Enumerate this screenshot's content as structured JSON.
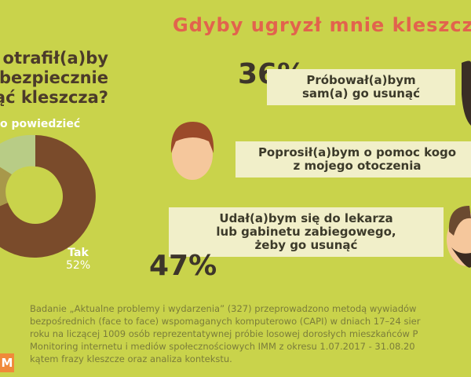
{
  "question": {
    "lines": [
      "otrafił(a)by",
      "bezpiecznie",
      "ąć kleszcza?"
    ]
  },
  "donut": {
    "other_label": "o powiedzieć",
    "yes_label": "Tak",
    "yes_value": "52%"
  },
  "title": "Gdyby ugryzł mnie kleszcz",
  "answers": [
    {
      "percent": "36%",
      "lines": [
        "Próbował(a)bym",
        "sam(a) go usunąć"
      ]
    },
    {
      "lines": [
        "Poprosił(a)bym o pomoc kogo",
        "z mojego otoczenia"
      ]
    },
    {
      "percent": "47%",
      "lines": [
        "Udał(a)bym się do lekarza",
        "lub gabinetu zabiegowego,",
        "żeby go usunąć"
      ]
    }
  ],
  "footer": {
    "badge": "M",
    "lines": [
      "Badanie „Aktualne problemy i wydarzenia” (327) przeprowadzono metodą wywiadów",
      "bezpośrednich (face to face) wspomaganych komputerowo (CAPI) w dniach 17–24 sier",
      "roku na liczącej 1009 osób reprezentatywnej próbie losowej dorosłych mieszkańców P",
      "Monitoring internetu i mediów społecznościowych IMM z okresu 1.07.2017 - 31.08.20",
      "kątem frazy kleszcze oraz analiza kontekstu."
    ]
  }
}
